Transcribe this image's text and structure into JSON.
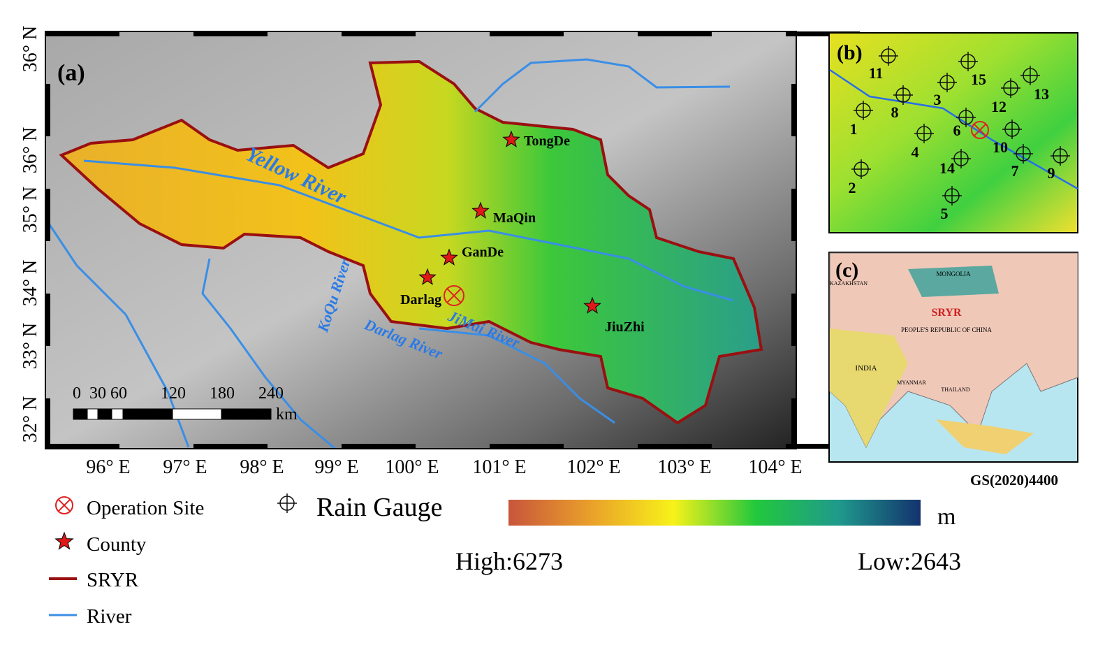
{
  "panel_a": {
    "label": "(a)",
    "lat_labels": [
      "36° N",
      "36° N",
      "35° N",
      "34° N",
      "33° N",
      "32° N"
    ],
    "lon_labels": [
      "96° E",
      "97° E",
      "98° E",
      "99° E",
      "100° E",
      "101° E",
      "102° E",
      "103° E",
      "104° E"
    ],
    "counties": [
      "TongDe",
      "MaQin",
      "GanDe",
      "Darlag",
      "JiuZhi"
    ],
    "rivers": [
      "Yellow River",
      "KoQu River",
      "Darlag River",
      "JiMai River"
    ],
    "scale_bar": {
      "ticks": [
        "0",
        "30",
        "60",
        "120",
        "180",
        "240"
      ],
      "unit": "km"
    }
  },
  "panel_b": {
    "label": "(b)",
    "gauges": [
      "1",
      "2",
      "3",
      "4",
      "5",
      "6",
      "7",
      "8",
      "9",
      "10",
      "11",
      "12",
      "13",
      "14",
      "15"
    ]
  },
  "panel_c": {
    "label": "(c)",
    "places": [
      "SRYR",
      "MONGOLIA",
      "PEOPLE'S REPUBLIC OF CHINA",
      "INDIA",
      "KAZAKHSTAN",
      "MYANMAR",
      "THAILAND"
    ],
    "approval_code": "GS(2020)4400"
  },
  "legend": {
    "operation_site": "Operation Site",
    "county": "County",
    "basin": "SRYR",
    "river": "River",
    "rain_gauge": "Rain Gauge"
  },
  "colorbar": {
    "unit": "m",
    "high": "High:6273",
    "low": "Low:2643"
  }
}
